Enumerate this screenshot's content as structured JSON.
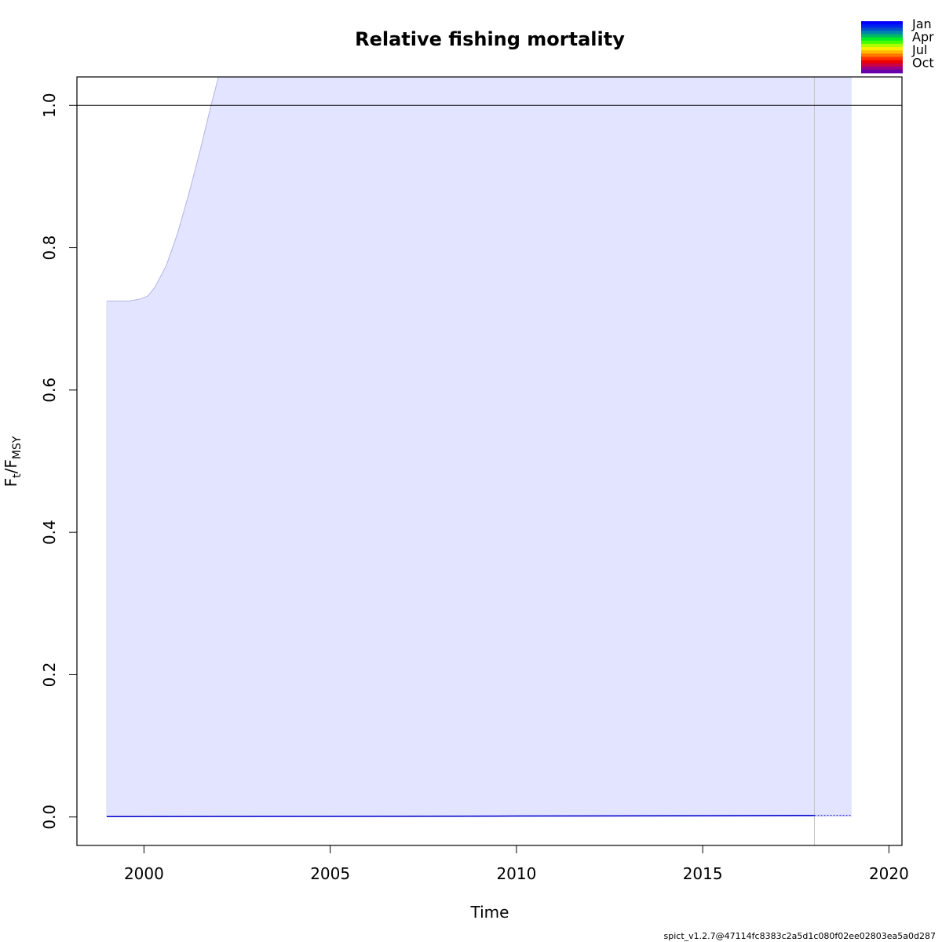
{
  "chart_data": {
    "type": "area",
    "title": "Relative fishing mortality",
    "xlabel": "Time",
    "ylabel_main": "F",
    "ylabel_sub1": "t",
    "ylabel_sep": "/F",
    "ylabel_sub2": "MSY",
    "xlim": [
      1998.2,
      2020.35
    ],
    "ylim": [
      -0.04,
      1.04
    ],
    "x_ticks": [
      2000,
      2005,
      2010,
      2015,
      2020
    ],
    "x_tick_labels": [
      "2000",
      "2005",
      "2010",
      "2015",
      "2020"
    ],
    "y_ticks": [
      0.0,
      0.2,
      0.4,
      0.6,
      0.8,
      1.0
    ],
    "y_tick_labels": [
      "0.0",
      "0.2",
      "0.4",
      "0.6",
      "0.8",
      "1.0"
    ],
    "reference_line_y": 1.0,
    "forecast_start_x": 2018,
    "ci_upper": [
      {
        "x": 1999.0,
        "y": 0.725
      },
      {
        "x": 1999.3,
        "y": 0.725
      },
      {
        "x": 1999.6,
        "y": 0.725
      },
      {
        "x": 1999.9,
        "y": 0.728
      },
      {
        "x": 2000.1,
        "y": 0.732
      },
      {
        "x": 2000.3,
        "y": 0.745
      },
      {
        "x": 2000.6,
        "y": 0.775
      },
      {
        "x": 2000.9,
        "y": 0.82
      },
      {
        "x": 2001.2,
        "y": 0.875
      },
      {
        "x": 2001.5,
        "y": 0.935
      },
      {
        "x": 2001.8,
        "y": 1.0
      },
      {
        "x": 2002.0,
        "y": 1.04
      }
    ],
    "ci_end_x": 2019.0,
    "estimate": [
      {
        "x": 1999.0,
        "y": 0.0005
      },
      {
        "x": 2005.0,
        "y": 0.0008
      },
      {
        "x": 2010.0,
        "y": 0.0013
      },
      {
        "x": 2015.0,
        "y": 0.0018
      },
      {
        "x": 2018.0,
        "y": 0.0022
      }
    ],
    "forecast": [
      {
        "x": 2018.0,
        "y": 0.0022
      },
      {
        "x": 2019.0,
        "y": 0.0024
      }
    ],
    "colors": {
      "ci_fill": "#e3e4ff",
      "ci_edge": "#b3b3e6",
      "estimate_line": "#0000cc",
      "reference_line": "#000000",
      "forecast_divider": "#c4c4c4"
    },
    "legend": {
      "placement": "top-right",
      "labels": [
        "Jan",
        "Apr",
        "Jul",
        "Oct"
      ],
      "colors": [
        "#0000ff",
        "#0022ee",
        "#0050cc",
        "#0088aa",
        "#00bb66",
        "#00ee22",
        "#44ff00",
        "#aaff00",
        "#ffee00",
        "#ffbb00",
        "#ff7700",
        "#ff3300",
        "#ee0000",
        "#cc0044",
        "#990088",
        "#6600aa"
      ]
    }
  },
  "footer": {
    "version": "spict_v1.2.7@47114fc8383c2a5d1c080f02ee02803ea5a0d287"
  }
}
